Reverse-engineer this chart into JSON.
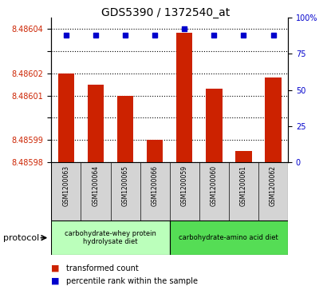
{
  "title": "GDS5390 / 1372540_at",
  "samples": [
    "GSM1200063",
    "GSM1200064",
    "GSM1200065",
    "GSM1200066",
    "GSM1200059",
    "GSM1200060",
    "GSM1200061",
    "GSM1200062"
  ],
  "bar_values": [
    8.48602,
    8.486015,
    8.48601,
    8.48599,
    8.486038,
    8.486013,
    8.485985,
    8.486018
  ],
  "percentile_values": [
    88,
    88,
    88,
    88,
    92,
    88,
    88,
    88
  ],
  "y_min": 8.48598,
  "y_max": 8.486045,
  "y_ticks": [
    8.48598,
    8.48599,
    8.486,
    8.48601,
    8.48602,
    8.48603,
    8.48604
  ],
  "y_tick_labels": [
    "8.48598",
    "8.48599",
    "",
    "8.48601",
    "8.48602",
    "",
    "8.48604"
  ],
  "right_y_ticks": [
    0,
    25,
    50,
    75,
    100
  ],
  "right_y_labels": [
    "0",
    "25",
    "50",
    "75",
    "100%"
  ],
  "bar_color": "#cc2200",
  "dot_color": "#0000cc",
  "protocol_groups": [
    {
      "label": "carbohydrate-whey protein\nhydrolysate diet",
      "start": 0,
      "end": 4,
      "color": "#bbffbb"
    },
    {
      "label": "carbohydrate-amino acid diet",
      "start": 4,
      "end": 8,
      "color": "#55dd55"
    }
  ],
  "protocol_text": "protocol",
  "legend_items": [
    {
      "color": "#cc2200",
      "label": "transformed count"
    },
    {
      "color": "#0000cc",
      "label": "percentile rank within the sample"
    }
  ],
  "tick_label_color_left": "#cc2200",
  "tick_label_color_right": "#0000cc",
  "title_fontsize": 10,
  "axis_fontsize": 7,
  "sample_label_fontsize": 5.5,
  "proto_label_fontsize": 6,
  "legend_fontsize": 7
}
